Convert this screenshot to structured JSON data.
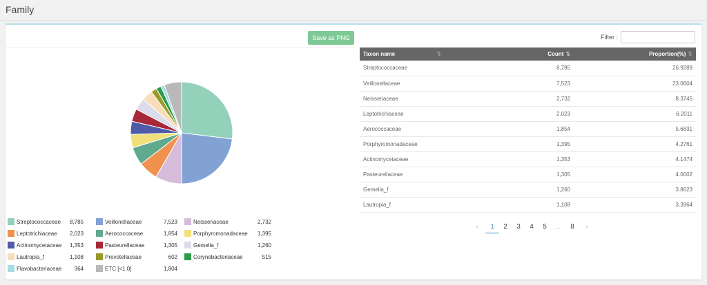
{
  "page": {
    "title": "Family"
  },
  "toolbar": {
    "save_label": "Save as PNG",
    "filter_label": "Filter :",
    "filter_value": ""
  },
  "table": {
    "headers": {
      "name": "Taxon name",
      "count": "Count",
      "proportion": "Proportion(%)"
    },
    "rows": [
      {
        "name": "Streptococcaceae",
        "count": "8,785",
        "proportion": "26.9289"
      },
      {
        "name": "Veillonellaceae",
        "count": "7,523",
        "proportion": "23.0604"
      },
      {
        "name": "Neisseriaceae",
        "count": "2,732",
        "proportion": "8.3745"
      },
      {
        "name": "Leptotrichiaceae",
        "count": "2,023",
        "proportion": "6.2011"
      },
      {
        "name": "Aerococcaceae",
        "count": "1,854",
        "proportion": "5.6831"
      },
      {
        "name": "Porphyromonadaceae",
        "count": "1,395",
        "proportion": "4.2761"
      },
      {
        "name": "Actinomycetaceae",
        "count": "1,353",
        "proportion": "4.1474"
      },
      {
        "name": "Pasteurellaceae",
        "count": "1,305",
        "proportion": "4.0002"
      },
      {
        "name": "Gemella_f",
        "count": "1,260",
        "proportion": "3.8623"
      },
      {
        "name": "Lautropia_f",
        "count": "1,108",
        "proportion": "3.3964"
      }
    ]
  },
  "pagination": {
    "prev": "‹",
    "next": "›",
    "ellipsis": "...",
    "pages": [
      "1",
      "2",
      "3",
      "4",
      "5",
      "8"
    ],
    "current": "1"
  },
  "chart_data": {
    "type": "pie",
    "slices": [
      {
        "label": "Streptococcaceae",
        "value": 8785,
        "display": "8,785",
        "color": "#93d1bb"
      },
      {
        "label": "Veillonellaceae",
        "value": 7523,
        "display": "7,523",
        "color": "#82a2d4"
      },
      {
        "label": "Neisseriaceae",
        "value": 2732,
        "display": "2,732",
        "color": "#d6bcdb"
      },
      {
        "label": "Leptotrichiaceae",
        "value": 2023,
        "display": "2,023",
        "color": "#f0924e"
      },
      {
        "label": "Aerococcaceae",
        "value": 1854,
        "display": "1,854",
        "color": "#5fa98f"
      },
      {
        "label": "Porphyromonadaceae",
        "value": 1395,
        "display": "1,395",
        "color": "#f1e07a"
      },
      {
        "label": "Actinomycetaceae",
        "value": 1353,
        "display": "1,353",
        "color": "#4f5ba6"
      },
      {
        "label": "Pasteurellaceae",
        "value": 1305,
        "display": "1,305",
        "color": "#a8283a"
      },
      {
        "label": "Gemella_f",
        "value": 1260,
        "display": "1,260",
        "color": "#dcdcec"
      },
      {
        "label": "Lautropia_f",
        "value": 1108,
        "display": "1,108",
        "color": "#f8ddb8"
      },
      {
        "label": "Prevotellaceae",
        "value": 602,
        "display": "602",
        "color": "#9a9a2a"
      },
      {
        "label": "Corynebacteriaceae",
        "value": 515,
        "display": "515",
        "color": "#2e9b4a"
      },
      {
        "label": "Flavobacteriaceae",
        "value": 364,
        "display": "364",
        "color": "#a6dde3"
      },
      {
        "label": "ETC [<1.0]",
        "value": 1804,
        "display": "1,804",
        "color": "#b9b9b9"
      }
    ],
    "legend_position": "bottom"
  }
}
